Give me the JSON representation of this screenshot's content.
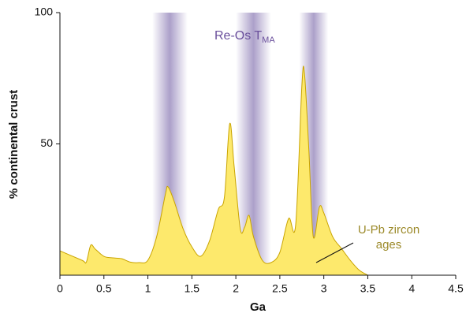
{
  "chart_data": {
    "type": "area",
    "x_label": "Ga",
    "y_label": "% continental crust",
    "xlim": [
      0,
      4.5
    ],
    "xticks": [
      0,
      0.5,
      1,
      1.5,
      2,
      2.5,
      3,
      3.5,
      4,
      4.5
    ],
    "ylim": [
      0,
      100
    ],
    "yticks": [
      50,
      100
    ],
    "x": [
      0,
      0.25,
      0.3,
      0.35,
      0.4,
      0.5,
      0.6,
      0.7,
      0.8,
      0.9,
      1.0,
      1.1,
      1.2,
      1.23,
      1.3,
      1.4,
      1.5,
      1.6,
      1.7,
      1.8,
      1.87,
      1.93,
      1.98,
      2.05,
      2.1,
      2.15,
      2.2,
      2.3,
      2.4,
      2.5,
      2.6,
      2.68,
      2.75,
      2.78,
      2.83,
      2.88,
      2.95,
      3.0,
      3.1,
      3.2,
      3.3,
      3.4,
      3.5
    ],
    "values": [
      9.3,
      5.7,
      5,
      11.4,
      10,
      7.2,
      6.6,
      6.3,
      5,
      4.8,
      5.7,
      14.7,
      31,
      33.6,
      28,
      17.7,
      10.8,
      7.2,
      13,
      25,
      29.7,
      57.7,
      41.7,
      17.7,
      18.3,
      22.8,
      14.7,
      5.7,
      4.8,
      8.7,
      21.6,
      19.2,
      71.8,
      76.9,
      47.7,
      14.7,
      26,
      23.7,
      14.7,
      10.2,
      5.7,
      2,
      0
    ],
    "color": "#fde96c",
    "line_color": "#c9a400",
    "bands": [
      [
        1.05,
        1.45
      ],
      [
        2.0,
        2.4
      ],
      [
        2.72,
        3.05
      ]
    ],
    "band_color": "#9d8fc0",
    "band_label": "Re-Os T",
    "band_label_sub": "MA",
    "annotation": [
      "U-Pb zircon",
      "ages"
    ]
  }
}
